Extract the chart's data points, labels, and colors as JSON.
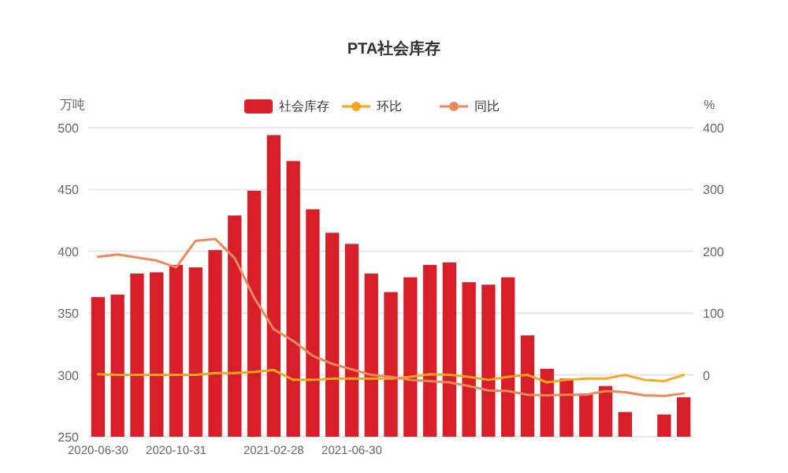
{
  "chart_data": {
    "type": "bar",
    "title": "PTA社会库存",
    "ylabel": "万吨",
    "y2label": "%",
    "categories": [
      "2020-06-30",
      null,
      null,
      null,
      "2020-10-31",
      null,
      null,
      null,
      null,
      "2021-02-28",
      null,
      null,
      null,
      "2021-06-30",
      null,
      null,
      null,
      null,
      null,
      null,
      null,
      null,
      null,
      null,
      null,
      null,
      null,
      null,
      null,
      null,
      null
    ],
    "series": [
      {
        "name": "社会库存",
        "color": "#d81e28",
        "values": [
          363,
          365,
          382,
          383,
          389,
          387,
          401,
          429,
          449,
          494,
          473,
          434,
          415,
          406,
          382,
          367,
          379,
          389,
          391,
          375,
          373,
          379,
          332,
          305,
          297,
          285,
          291,
          270,
          null,
          268,
          282
        ]
      },
      {
        "name": "环比",
        "type": "line",
        "axis": "y2",
        "color": "#f5a623",
        "values": [
          1,
          0,
          0,
          0,
          0,
          0,
          3,
          3,
          5,
          8,
          -8,
          -8,
          -6,
          -6,
          -6,
          -6,
          -3,
          1,
          0,
          -3,
          -8,
          -3,
          0,
          -12,
          -8,
          -6,
          -6,
          0,
          -8,
          -10,
          0
        ]
      },
      {
        "name": "同比",
        "type": "line",
        "axis": "y2",
        "color": "#ec8a5c",
        "values": [
          191,
          195,
          190,
          185,
          174,
          217,
          220,
          189,
          125,
          74,
          55,
          31,
          18,
          9,
          0,
          -3,
          -8,
          -10,
          -12,
          -18,
          -25,
          -26,
          -32,
          -33,
          -32,
          -32,
          -26,
          -28,
          -33,
          -34,
          -30
        ]
      }
    ],
    "ylim": [
      250,
      500
    ],
    "yticks": [
      250,
      300,
      350,
      400,
      450,
      500
    ],
    "y2lim": [
      -100,
      400
    ],
    "y2ticks": [
      0,
      100,
      200,
      300,
      400
    ],
    "grid": "y",
    "legend": "top"
  }
}
